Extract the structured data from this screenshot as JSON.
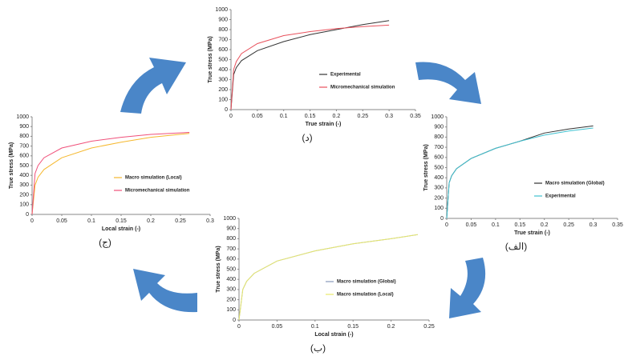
{
  "chart_data": [
    {
      "type": "line",
      "caption": "(د)",
      "xlabel": "True strain (-)",
      "ylabel": "True stress (MPa)",
      "xlim": [
        0,
        0.35
      ],
      "xticks": [
        0,
        0.05,
        0.1,
        0.15,
        0.2,
        0.25,
        0.3,
        0.35
      ],
      "ylim": [
        0,
        1000
      ],
      "yticks": [
        0,
        100,
        200,
        300,
        400,
        500,
        600,
        700,
        800,
        900,
        1000
      ],
      "x": [
        0,
        0.005,
        0.01,
        0.02,
        0.05,
        0.1,
        0.15,
        0.2,
        0.25,
        0.3
      ],
      "series": [
        {
          "name": "Experimental",
          "color": "#333333",
          "values": [
            0,
            350,
            420,
            490,
            590,
            680,
            750,
            800,
            850,
            890
          ]
        },
        {
          "name": "Micromechanical simulation",
          "color": "#e8505b",
          "values": [
            0,
            400,
            480,
            560,
            660,
            740,
            780,
            810,
            830,
            845
          ]
        }
      ]
    },
    {
      "type": "line",
      "caption": "(الف)",
      "xlabel": "True strain (-)",
      "ylabel": "True stress (MPa)",
      "xlim": [
        0,
        0.35
      ],
      "xticks": [
        0,
        0.05,
        0.1,
        0.15,
        0.2,
        0.25,
        0.3,
        0.35
      ],
      "ylim": [
        0,
        1000
      ],
      "yticks": [
        0,
        100,
        200,
        300,
        400,
        500,
        600,
        700,
        800,
        900,
        1000
      ],
      "x": [
        0,
        0.005,
        0.01,
        0.02,
        0.05,
        0.1,
        0.15,
        0.2,
        0.25,
        0.3
      ],
      "series": [
        {
          "name": "Macro simulation (Global)",
          "color": "#333333",
          "values": [
            0,
            350,
            420,
            490,
            590,
            690,
            760,
            840,
            880,
            910
          ]
        },
        {
          "name": "Experimental",
          "color": "#3fc1d0",
          "values": [
            0,
            350,
            420,
            490,
            590,
            690,
            760,
            820,
            860,
            890
          ]
        }
      ]
    },
    {
      "type": "line",
      "caption": "(ج)",
      "xlabel": "Local strain (-)",
      "ylabel": "True stress (MPa)",
      "xlim": [
        0,
        0.3
      ],
      "xticks": [
        0,
        0.05,
        0.1,
        0.15,
        0.2,
        0.25,
        0.3
      ],
      "ylim": [
        0,
        1000
      ],
      "yticks": [
        0,
        100,
        200,
        300,
        400,
        500,
        600,
        700,
        800,
        900,
        1000
      ],
      "x": [
        0,
        0.005,
        0.01,
        0.02,
        0.05,
        0.1,
        0.15,
        0.2,
        0.265
      ],
      "series": [
        {
          "name": "Macro simulation (Local)",
          "color": "#f5b82e",
          "values": [
            0,
            300,
            380,
            460,
            580,
            680,
            740,
            790,
            830
          ]
        },
        {
          "name": "Micromechanical simulation",
          "color": "#f0507a",
          "values": [
            0,
            420,
            500,
            580,
            680,
            750,
            790,
            820,
            840
          ]
        }
      ]
    },
    {
      "type": "line",
      "caption": "(ب)",
      "xlabel": "Local strain (-)",
      "ylabel": "True stress (MPa)",
      "xlim": [
        0,
        0.25
      ],
      "xticks": [
        0,
        0.05,
        0.1,
        0.15,
        0.2,
        0.25
      ],
      "ylim": [
        0,
        1000
      ],
      "yticks": [
        0,
        100,
        200,
        300,
        400,
        500,
        600,
        700,
        800,
        900,
        1000
      ],
      "x": [
        0,
        0.005,
        0.01,
        0.02,
        0.05,
        0.1,
        0.15,
        0.2,
        0.235
      ],
      "series": [
        {
          "name": "Macro simulation (Global)",
          "color": "#8899bb",
          "values": [
            0,
            300,
            380,
            460,
            580,
            680,
            750,
            800,
            840
          ]
        },
        {
          "name": "Macro simulation (Local)",
          "color": "#e8e86a",
          "values": [
            0,
            300,
            380,
            460,
            580,
            680,
            750,
            800,
            840
          ]
        }
      ]
    }
  ]
}
